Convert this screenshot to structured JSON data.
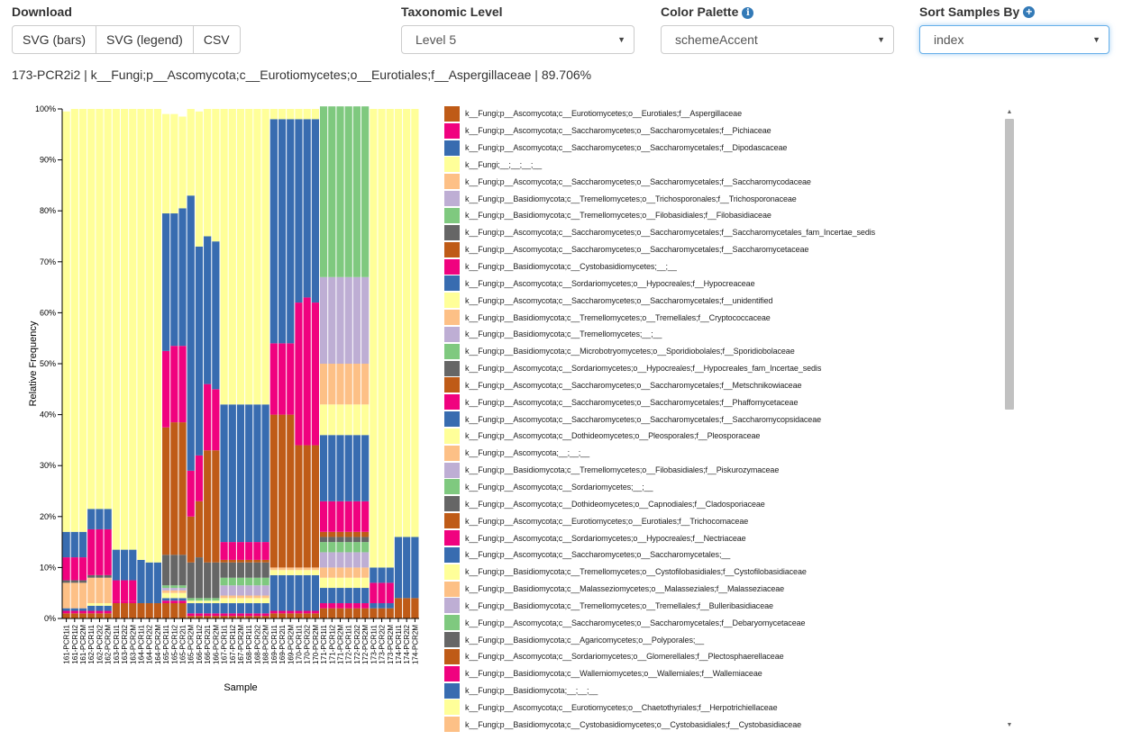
{
  "controls": {
    "download": {
      "label": "Download",
      "buttons": [
        "SVG (bars)",
        "SVG (legend)",
        "CSV"
      ]
    },
    "taxonomic_level": {
      "label": "Taxonomic Level",
      "value": "Level 5"
    },
    "color_palette": {
      "label": "Color Palette",
      "value": "schemeAccent",
      "icon": "info-icon"
    },
    "sort_samples": {
      "label": "Sort Samples By",
      "value": "index",
      "icon": "plus-circle-icon"
    }
  },
  "hover_info": "173-PCR2i2 | k__Fungi;p__Ascomycota;c__Eurotiomycetes;o__Eurotiales;f__Aspergillaceae | 89.706%",
  "colors": [
    "#bf5b17",
    "#f0027f",
    "#386cb0",
    "#ffff99",
    "#fdc086",
    "#beaed4",
    "#7fc97f",
    "#666666"
  ],
  "chart_data": {
    "type": "bar",
    "stacked": true,
    "title": "",
    "xlabel": "Sample",
    "ylabel": "Relative Frequency",
    "ylim": [
      0,
      100
    ],
    "yticks": [
      "0%",
      "10%",
      "20%",
      "30%",
      "40%",
      "50%",
      "60%",
      "70%",
      "80%",
      "90%",
      "100%"
    ],
    "x_tick_labels": [
      "161-PCR1i1",
      "161-PCR1i2",
      "161-PCR2M",
      "162-PCR1i1",
      "162-PCR2i2",
      "162-PCR2M",
      "163-PCR1i1",
      "163-PCR2i2",
      "163-PCR2M",
      "164-PCR1i1",
      "164-PCR2i2",
      "164-PCR2M",
      "165-PCR1i1",
      "165-PCR1i2",
      "165-PCR2i1",
      "165-PCR2M",
      "166-PCR1i2",
      "166-PCR2i1",
      "166-PCR2M",
      "167-PCR1i1",
      "167-PCR1i2",
      "167-PCR2M",
      "168-PCR1i1",
      "168-PCR2i2",
      "168-PCR2M",
      "169-PCR1i1",
      "169-PCR2i1",
      "169-PCR2M",
      "170-PCR1i1",
      "170-PCR2i2",
      "170-PCR2M",
      "171-PCR1i1",
      "171-PCR1i2",
      "171-PCR2M",
      "172-PCR1i1",
      "172-PCR2i2",
      "172-PCR2M",
      "173-PCR1i1",
      "173-PCR2i2",
      "173-PCR2M",
      "174-PCR1i1",
      "174-PCR2i2",
      "174-PCR2M"
    ],
    "samples": [
      {
        "segments": [
          1,
          0.5,
          0.5,
          0,
          5,
          0,
          0,
          0.5,
          0,
          4.5,
          5,
          82.5
        ]
      },
      {
        "segments": [
          1,
          0.5,
          0.5,
          0,
          5,
          0,
          0,
          0.5,
          0,
          4.5,
          5,
          83
        ]
      },
      {
        "segments": [
          1,
          0.5,
          0.5,
          0,
          5,
          0,
          0,
          0.5,
          0,
          4.5,
          5,
          83
        ]
      },
      {
        "segments": [
          1,
          0.5,
          1,
          0.5,
          5,
          0,
          0,
          0.5,
          0,
          9,
          4,
          78.5
        ]
      },
      {
        "segments": [
          1,
          0.5,
          1,
          0.5,
          5,
          0,
          0,
          0.5,
          0,
          9,
          4,
          78.5
        ]
      },
      {
        "segments": [
          1,
          0.5,
          1,
          0.5,
          5,
          0,
          0,
          0.5,
          0,
          9,
          4,
          78.5
        ]
      },
      {
        "segments": [
          3,
          0.5,
          0,
          0,
          0,
          0,
          0,
          0,
          0,
          4,
          6,
          86.5
        ]
      },
      {
        "segments": [
          3,
          0.5,
          0,
          0,
          0,
          0,
          0,
          0,
          0,
          4,
          6,
          86.5
        ]
      },
      {
        "segments": [
          3,
          0.5,
          0,
          0,
          0,
          0,
          0,
          0,
          0,
          4,
          6,
          86.5
        ]
      },
      {
        "segments": [
          3,
          0,
          0,
          0,
          0,
          0,
          0,
          0,
          0,
          0,
          8.5,
          88.5
        ]
      },
      {
        "segments": [
          3,
          0,
          0,
          0,
          0,
          0,
          0,
          0,
          0,
          0,
          8,
          89
        ]
      },
      {
        "segments": [
          3,
          0,
          0,
          0,
          0,
          0,
          0,
          0,
          0,
          0,
          8,
          89
        ]
      },
      {
        "segments": [
          3,
          0.5,
          0.5,
          1,
          0.5,
          0.5,
          0.5,
          6,
          25,
          15,
          27,
          19.5
        ]
      },
      {
        "segments": [
          3,
          0.5,
          0.5,
          1,
          0.5,
          0.5,
          0.5,
          6,
          26,
          15,
          26,
          19.5
        ]
      },
      {
        "segments": [
          3,
          0.5,
          0.5,
          1,
          0.5,
          0.5,
          0.5,
          6,
          26,
          15,
          27,
          18
        ]
      },
      {
        "segments": [
          0.5,
          0.5,
          2,
          0.5,
          0,
          0,
          0.5,
          7,
          9,
          9,
          54,
          17
        ]
      },
      {
        "segments": [
          0.5,
          0.5,
          2,
          0.5,
          0,
          0,
          0.5,
          8,
          11,
          9,
          41,
          26.5
        ]
      },
      {
        "segments": [
          0.5,
          0.5,
          2,
          0.5,
          0,
          0,
          0.5,
          7,
          22,
          13,
          29,
          25
        ]
      },
      {
        "segments": [
          0.5,
          0.5,
          2,
          0.5,
          0,
          0,
          0.5,
          7,
          22,
          12,
          29,
          26
        ]
      },
      {
        "segments": [
          0.5,
          0.5,
          2,
          1,
          0.5,
          2,
          1.5,
          3,
          0.5,
          3.5,
          27,
          58
        ]
      },
      {
        "segments": [
          0.5,
          0.5,
          2,
          1,
          0.5,
          2,
          1.5,
          3,
          0.5,
          3.5,
          27,
          58
        ]
      },
      {
        "segments": [
          0.5,
          0.5,
          2,
          1,
          0.5,
          2,
          1.5,
          3,
          0.5,
          3.5,
          27,
          58
        ]
      },
      {
        "segments": [
          0.5,
          0.5,
          2,
          1,
          0.5,
          2,
          1.5,
          3,
          0.5,
          3.5,
          27,
          58
        ]
      },
      {
        "segments": [
          0.5,
          0.5,
          2,
          1,
          0.5,
          2,
          1.5,
          3,
          0.5,
          3.5,
          27,
          58
        ]
      },
      {
        "segments": [
          0.5,
          0.5,
          2,
          1,
          0.5,
          2,
          1.5,
          3,
          0.5,
          3.5,
          27,
          58
        ]
      },
      {
        "segments": [
          1,
          0.5,
          7,
          1,
          0.5,
          0,
          0,
          0,
          30,
          14,
          44,
          2
        ]
      },
      {
        "segments": [
          1,
          0.5,
          7,
          1,
          0.5,
          0,
          0,
          0,
          30,
          14,
          44,
          2
        ]
      },
      {
        "segments": [
          1,
          0.5,
          7,
          1,
          0.5,
          0,
          0,
          0,
          30,
          14,
          44,
          2
        ]
      },
      {
        "segments": [
          1,
          0.5,
          7,
          1,
          0.5,
          0,
          0,
          0,
          24,
          28,
          36,
          2
        ]
      },
      {
        "segments": [
          1,
          0.5,
          7,
          1,
          0.5,
          0,
          0,
          0,
          24,
          29,
          35,
          2
        ]
      },
      {
        "segments": [
          1,
          0.5,
          7,
          1,
          0.5,
          0,
          0,
          0,
          24,
          28,
          36,
          2
        ]
      },
      {
        "segments": [
          2,
          1,
          3,
          2,
          2,
          3,
          2,
          1,
          1,
          6,
          13,
          6,
          8,
          17,
          33.5
        ]
      },
      {
        "segments": [
          2,
          1,
          3,
          2,
          2,
          3,
          2,
          1,
          1,
          6,
          13,
          6,
          8,
          17,
          33.5
        ]
      },
      {
        "segments": [
          2,
          1,
          3,
          2,
          2,
          3,
          2,
          1,
          1,
          6,
          13,
          6,
          8,
          17,
          33.5
        ]
      },
      {
        "segments": [
          2,
          1,
          3,
          2,
          2,
          3,
          2,
          1,
          1,
          6,
          13,
          6,
          8,
          17,
          33.5
        ]
      },
      {
        "segments": [
          2,
          1,
          3,
          2,
          2,
          3,
          2,
          1,
          1,
          6,
          13,
          6,
          8,
          17,
          33.5
        ]
      },
      {
        "segments": [
          2,
          1,
          3,
          2,
          2,
          3,
          2,
          1,
          1,
          6,
          13,
          6,
          8,
          17,
          33.5
        ]
      },
      {
        "segments": [
          2,
          0,
          1,
          0,
          0,
          0,
          0,
          0,
          0,
          4,
          3,
          90
        ]
      },
      {
        "segments": [
          2,
          0,
          1,
          0,
          0,
          0,
          0,
          0,
          0,
          4,
          3,
          90
        ]
      },
      {
        "segments": [
          2,
          0,
          1,
          0,
          0,
          0,
          0,
          0,
          0,
          4,
          3,
          90
        ]
      },
      {
        "segments": [
          4,
          0,
          0,
          0,
          0,
          0,
          0,
          0,
          0,
          0,
          12,
          84
        ]
      },
      {
        "segments": [
          4,
          0,
          0,
          0,
          0,
          0,
          0,
          0,
          0,
          0,
          12,
          84
        ]
      },
      {
        "segments": [
          4,
          0,
          0,
          0,
          0,
          0,
          0,
          0,
          0,
          0,
          12,
          84
        ]
      }
    ],
    "legend": [
      "k__Fungi;p__Ascomycota;c__Eurotiomycetes;o__Eurotiales;f__Aspergillaceae",
      "k__Fungi;p__Ascomycota;c__Saccharomycetes;o__Saccharomycetales;f__Pichiaceae",
      "k__Fungi;p__Ascomycota;c__Saccharomycetes;o__Saccharomycetales;f__Dipodascaceae",
      "k__Fungi;__;__;__;__",
      "k__Fungi;p__Ascomycota;c__Saccharomycetes;o__Saccharomycetales;f__Saccharomycodaceae",
      "k__Fungi;p__Basidiomycota;c__Tremellomycetes;o__Trichosporonales;f__Trichosporonaceae",
      "k__Fungi;p__Basidiomycota;c__Tremellomycetes;o__Filobasidiales;f__Filobasidiaceae",
      "k__Fungi;p__Ascomycota;c__Saccharomycetes;o__Saccharomycetales;f__Saccharomycetales_fam_Incertae_sedis",
      "k__Fungi;p__Ascomycota;c__Saccharomycetes;o__Saccharomycetales;f__Saccharomycetaceae",
      "k__Fungi;p__Basidiomycota;c__Cystobasidiomycetes;__;__",
      "k__Fungi;p__Ascomycota;c__Sordariomycetes;o__Hypocreales;f__Hypocreaceae",
      "k__Fungi;p__Ascomycota;c__Saccharomycetes;o__Saccharomycetales;f__unidentified",
      "k__Fungi;p__Basidiomycota;c__Tremellomycetes;o__Tremellales;f__Cryptococcaceae",
      "k__Fungi;p__Basidiomycota;c__Tremellomycetes;__;__",
      "k__Fungi;p__Basidiomycota;c__Microbotryomycetes;o__Sporidiobolales;f__Sporidiobolaceae",
      "k__Fungi;p__Ascomycota;c__Sordariomycetes;o__Hypocreales;f__Hypocreales_fam_Incertae_sedis",
      "k__Fungi;p__Ascomycota;c__Saccharomycetes;o__Saccharomycetales;f__Metschnikowiaceae",
      "k__Fungi;p__Ascomycota;c__Saccharomycetes;o__Saccharomycetales;f__Phaffomycetaceae",
      "k__Fungi;p__Ascomycota;c__Saccharomycetes;o__Saccharomycetales;f__Saccharomycopsidaceae",
      "k__Fungi;p__Ascomycota;c__Dothideomycetes;o__Pleosporales;f__Pleosporaceae",
      "k__Fungi;p__Ascomycota;__;__;__",
      "k__Fungi;p__Basidiomycota;c__Tremellomycetes;o__Filobasidiales;f__Piskurozymaceae",
      "k__Fungi;p__Ascomycota;c__Sordariomycetes;__;__",
      "k__Fungi;p__Ascomycota;c__Dothideomycetes;o__Capnodiales;f__Cladosporiaceae",
      "k__Fungi;p__Ascomycota;c__Eurotiomycetes;o__Eurotiales;f__Trichocomaceae",
      "k__Fungi;p__Ascomycota;c__Sordariomycetes;o__Hypocreales;f__Nectriaceae",
      "k__Fungi;p__Ascomycota;c__Saccharomycetes;o__Saccharomycetales;__",
      "k__Fungi;p__Basidiomycota;c__Tremellomycetes;o__Cystofilobasidiales;f__Cystofilobasidiaceae",
      "k__Fungi;p__Basidiomycota;c__Malasseziomycetes;o__Malasseziales;f__Malasseziaceae",
      "k__Fungi;p__Basidiomycota;c__Tremellomycetes;o__Tremellales;f__Bulleribasidiaceae",
      "k__Fungi;p__Ascomycota;c__Saccharomycetes;o__Saccharomycetales;f__Debaryomycetaceae",
      "k__Fungi;p__Basidiomycota;c__Agaricomycetes;o__Polyporales;__",
      "k__Fungi;p__Ascomycota;c__Sordariomycetes;o__Glomerellales;f__Plectosphaerellaceae",
      "k__Fungi;p__Basidiomycota;c__Wallemiomycetes;o__Wallemiales;f__Wallemiaceae",
      "k__Fungi;p__Basidiomycota;__;__;__",
      "k__Fungi;p__Ascomycota;c__Eurotiomycetes;o__Chaetothyriales;f__Herpotrichiellaceae",
      "k__Fungi;p__Basidiomycota;c__Cystobasidiomycetes;o__Cystobasidiales;f__Cystobasidiaceae"
    ]
  }
}
